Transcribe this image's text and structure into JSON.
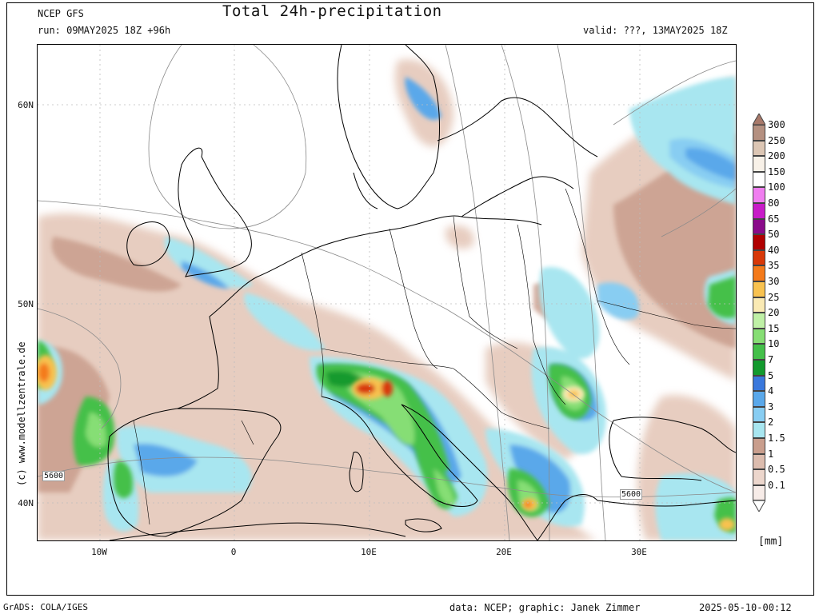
{
  "header": {
    "model": "NCEP GFS",
    "title": "Total 24h-precipitation",
    "run": "run: 09MAY2025 18Z +96h",
    "valid": "valid: ???, 13MAY2025 18Z"
  },
  "map": {
    "lat_labels": [
      "60N",
      "50N",
      "40N"
    ],
    "lon_labels": [
      "10W",
      "0",
      "10E",
      "20E",
      "30E"
    ],
    "watermark": "(c)  www.modellzentrale.de",
    "isoline_labels": [
      "5600",
      "5600"
    ]
  },
  "legend": {
    "unit": "[mm]",
    "levels": [
      "0.1",
      "0.5",
      "1",
      "1.5",
      "2",
      "3",
      "4",
      "5",
      "7",
      "10",
      "15",
      "20",
      "25",
      "30",
      "35",
      "40",
      "50",
      "65",
      "80",
      "100",
      "150",
      "200",
      "250",
      "300"
    ],
    "colors": [
      "#f7ece8",
      "#ecd6cc",
      "#dcbcae",
      "#c99e8d",
      "#a8e6f0",
      "#88cdf2",
      "#5aa8ea",
      "#3a78dc",
      "#139a2e",
      "#44c04a",
      "#86de74",
      "#bff0a6",
      "#faeab4",
      "#f8c250",
      "#f47a1a",
      "#d83808",
      "#b00000",
      "#8a0a8a",
      "#c81cc8",
      "#f07ef0",
      "#ffffff",
      "#f8f1e8",
      "#dcc6b4",
      "#b49080"
    ]
  },
  "footer": {
    "left": "GrADS: COLA/IGES",
    "center": "data: NCEP; graphic: Janek Zimmer",
    "right": "2025-05-10-00:12"
  }
}
